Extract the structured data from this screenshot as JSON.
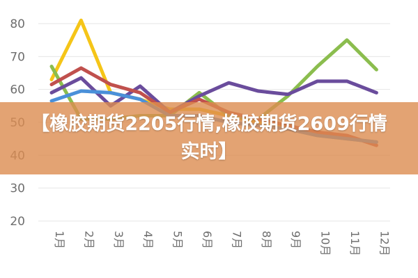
{
  "banner": {
    "title": "【橡胶期货2205行情,橡胶期货2609行情实时】"
  },
  "chart_data": {
    "type": "line",
    "title": "",
    "xlabel": "",
    "ylabel": "",
    "categories": [
      "1月",
      "2月",
      "3月",
      "4月",
      "5月",
      "6月",
      "7月",
      "8月",
      "9月",
      "10月",
      "11月",
      "12月"
    ],
    "ylim": [
      20,
      80
    ],
    "yticks": [
      20,
      30,
      40,
      50,
      60,
      70,
      80
    ],
    "grid": "horizontal",
    "series": [
      {
        "color": "#f5c518",
        "values": [
          63,
          81,
          59,
          57,
          54,
          54,
          52,
          50,
          48,
          46,
          45,
          44
        ]
      },
      {
        "color": "#8bbd4e",
        "values": [
          67,
          51,
          51,
          52,
          52,
          59,
          52,
          51,
          58,
          67,
          75,
          66
        ]
      },
      {
        "color": "#6a4c9c",
        "values": [
          59,
          63.5,
          55,
          61,
          53,
          58,
          62,
          59.5,
          58.5,
          62.5,
          62.5,
          59
        ]
      },
      {
        "color": "#c0504d",
        "values": [
          61.5,
          66.5,
          61.5,
          59,
          53,
          57,
          53,
          51,
          49,
          47,
          46,
          43
        ]
      },
      {
        "color": "#4a90d9",
        "values": [
          56.5,
          59.5,
          59,
          57,
          52,
          52,
          50,
          49,
          48,
          46,
          45,
          44
        ]
      }
    ]
  }
}
